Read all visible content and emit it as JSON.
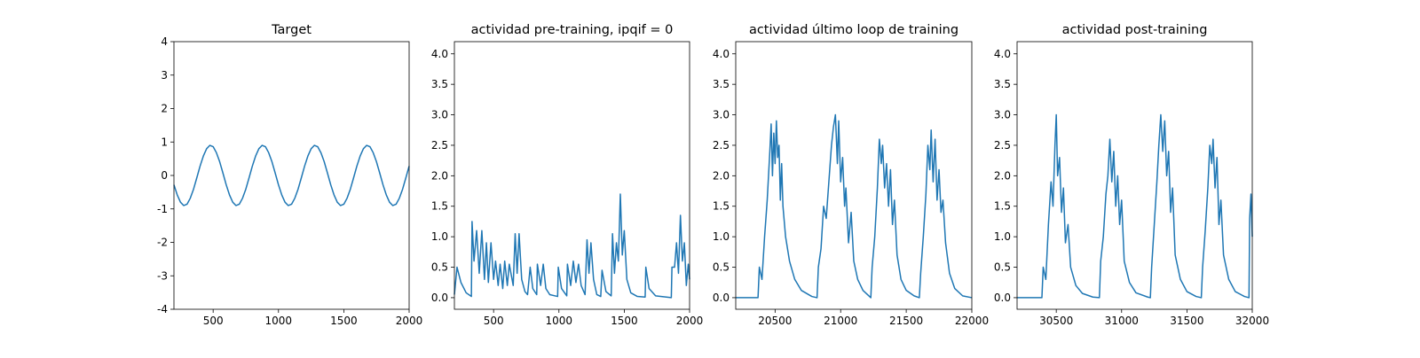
{
  "chart_data": [
    {
      "type": "line",
      "title": "Target",
      "color": "#1f77b4",
      "x": [
        200,
        225,
        250,
        275,
        300,
        325,
        350,
        375,
        400,
        425,
        450,
        475,
        500,
        525,
        550,
        575,
        600,
        625,
        650,
        675,
        700,
        725,
        750,
        775,
        800,
        825,
        850,
        875,
        900,
        925,
        950,
        975,
        1000,
        1025,
        1050,
        1075,
        1100,
        1125,
        1150,
        1175,
        1200,
        1225,
        1250,
        1275,
        1300,
        1325,
        1350,
        1375,
        1400,
        1425,
        1450,
        1475,
        1500,
        1525,
        1550,
        1575,
        1600,
        1625,
        1650,
        1675,
        1700,
        1725,
        1750,
        1775,
        1800,
        1825,
        1850,
        1875,
        1900,
        1925,
        1950,
        1975,
        2000
      ],
      "values": [
        -0.28,
        -0.58,
        -0.8,
        -0.9,
        -0.86,
        -0.68,
        -0.41,
        -0.07,
        0.28,
        0.58,
        0.8,
        0.9,
        0.86,
        0.68,
        0.41,
        0.07,
        -0.28,
        -0.58,
        -0.8,
        -0.9,
        -0.86,
        -0.68,
        -0.41,
        -0.07,
        0.28,
        0.58,
        0.8,
        0.9,
        0.86,
        0.68,
        0.41,
        0.07,
        -0.28,
        -0.58,
        -0.8,
        -0.9,
        -0.86,
        -0.68,
        -0.41,
        -0.07,
        0.28,
        0.58,
        0.8,
        0.9,
        0.86,
        0.68,
        0.41,
        0.07,
        -0.28,
        -0.58,
        -0.8,
        -0.9,
        -0.86,
        -0.68,
        -0.41,
        -0.07,
        0.28,
        0.58,
        0.8,
        0.9,
        0.86,
        0.68,
        0.41,
        0.07,
        -0.28,
        -0.58,
        -0.8,
        -0.9,
        -0.86,
        -0.68,
        -0.41,
        -0.07,
        0.28
      ],
      "xlim": [
        200,
        2000
      ],
      "ylim": [
        -4,
        4
      ],
      "xticks": [
        500,
        1000,
        1500,
        2000
      ],
      "yticks": [
        -4,
        -3,
        -2,
        -1,
        0,
        1,
        2,
        3,
        4
      ]
    },
    {
      "type": "line",
      "title": "actividad pre-training, ipqif = 0",
      "color": "#1f77b4",
      "x": [
        200,
        220,
        250,
        290,
        330,
        335,
        350,
        370,
        390,
        410,
        430,
        445,
        460,
        480,
        500,
        515,
        535,
        550,
        570,
        585,
        605,
        620,
        650,
        665,
        680,
        695,
        715,
        740,
        760,
        780,
        800,
        830,
        835,
        860,
        880,
        900,
        930,
        990,
        995,
        1020,
        1060,
        1065,
        1090,
        1110,
        1130,
        1150,
        1170,
        1200,
        1215,
        1230,
        1245,
        1265,
        1290,
        1320,
        1330,
        1360,
        1400,
        1410,
        1425,
        1440,
        1455,
        1470,
        1485,
        1500,
        1520,
        1550,
        1600,
        1660,
        1665,
        1690,
        1740,
        1860,
        1865,
        1885,
        1900,
        1915,
        1930,
        1945,
        1960,
        1975,
        1990,
        2000
      ],
      "values": [
        0.05,
        0.5,
        0.25,
        0.08,
        0.02,
        1.25,
        0.6,
        1.1,
        0.4,
        1.1,
        0.3,
        0.9,
        0.25,
        0.9,
        0.3,
        0.6,
        0.2,
        0.55,
        0.15,
        0.6,
        0.2,
        0.55,
        0.2,
        1.05,
        0.4,
        1.05,
        0.3,
        0.1,
        0.05,
        0.5,
        0.15,
        0.05,
        0.55,
        0.2,
        0.55,
        0.15,
        0.05,
        0.02,
        0.5,
        0.15,
        0.03,
        0.55,
        0.2,
        0.6,
        0.25,
        0.55,
        0.2,
        0.05,
        0.95,
        0.4,
        0.9,
        0.3,
        0.05,
        0.02,
        0.45,
        0.1,
        0.03,
        1.05,
        0.4,
        0.9,
        0.6,
        1.7,
        0.7,
        1.1,
        0.3,
        0.08,
        0.02,
        0.01,
        0.5,
        0.15,
        0.03,
        0.0,
        0.5,
        0.5,
        0.9,
        0.4,
        1.35,
        0.6,
        0.9,
        0.2,
        0.55,
        0.3
      ],
      "xlim": [
        200,
        2000
      ],
      "ylim": [
        -0.19,
        4.2
      ],
      "xticks": [
        500,
        1000,
        1500,
        2000
      ],
      "yticks": [
        {
          "value": 0,
          "label": "0.0"
        },
        0.5,
        {
          "value": 1,
          "label": "1.0"
        },
        1.5,
        {
          "value": 2,
          "label": "2.0"
        },
        2.5,
        {
          "value": 3,
          "label": "3.0"
        },
        3.5,
        {
          "value": 4,
          "label": "4.0"
        }
      ]
    },
    {
      "type": "line",
      "title": "actividad último loop de training",
      "color": "#1f77b4",
      "x": [
        20200,
        20370,
        20380,
        20400,
        20420,
        20440,
        20460,
        20470,
        20480,
        20490,
        20500,
        20510,
        20520,
        20530,
        20540,
        20550,
        20560,
        20580,
        20610,
        20650,
        20700,
        20780,
        20820,
        20830,
        20850,
        20870,
        20890,
        20910,
        20930,
        20945,
        20960,
        20975,
        20985,
        21000,
        21015,
        21030,
        21040,
        21060,
        21080,
        21100,
        21130,
        21170,
        21220,
        21230,
        21240,
        21260,
        21280,
        21295,
        21310,
        21320,
        21335,
        21350,
        21365,
        21380,
        21395,
        21410,
        21430,
        21460,
        21500,
        21560,
        21600,
        21610,
        21630,
        21650,
        21665,
        21680,
        21690,
        21705,
        21720,
        21735,
        21750,
        21765,
        21780,
        21800,
        21830,
        21870,
        21930,
        22000
      ],
      "values": [
        0,
        0,
        0.5,
        0.3,
        1.0,
        1.6,
        2.4,
        2.85,
        2.0,
        2.7,
        2.2,
        2.9,
        2.3,
        2.5,
        1.6,
        2.2,
        1.5,
        1.0,
        0.6,
        0.3,
        0.12,
        0.02,
        0,
        0.5,
        0.8,
        1.5,
        1.3,
        1.9,
        2.5,
        2.8,
        3.0,
        2.2,
        2.9,
        1.9,
        2.3,
        1.5,
        1.8,
        0.9,
        1.4,
        0.6,
        0.3,
        0.12,
        0.02,
        0,
        0.5,
        1.0,
        1.8,
        2.6,
        2.2,
        2.5,
        1.8,
        2.2,
        1.5,
        2.1,
        1.2,
        1.6,
        0.7,
        0.3,
        0.12,
        0.03,
        0,
        0.4,
        1.0,
        1.7,
        2.5,
        2.1,
        2.75,
        1.9,
        2.6,
        1.6,
        2.1,
        1.4,
        1.6,
        0.9,
        0.4,
        0.15,
        0.03,
        0
      ],
      "xlim": [
        20200,
        22000
      ],
      "ylim": [
        -0.19,
        4.2
      ],
      "xticks": [
        20500,
        21000,
        21500,
        22000
      ],
      "yticks": [
        {
          "value": 0,
          "label": "0.0"
        },
        0.5,
        {
          "value": 1,
          "label": "1.0"
        },
        1.5,
        {
          "value": 2,
          "label": "2.0"
        },
        2.5,
        {
          "value": 3,
          "label": "3.0"
        },
        3.5,
        {
          "value": 4,
          "label": "4.0"
        }
      ]
    },
    {
      "type": "line",
      "title": "actividad post-training",
      "color": "#1f77b4",
      "x": [
        30200,
        30390,
        30400,
        30420,
        30440,
        30460,
        30475,
        30490,
        30500,
        30510,
        30525,
        30540,
        30555,
        30570,
        30590,
        30610,
        30650,
        30700,
        30780,
        30830,
        30840,
        30860,
        30880,
        30895,
        30910,
        30925,
        30940,
        30955,
        30970,
        30985,
        31000,
        31020,
        31060,
        31110,
        31200,
        31220,
        31230,
        31250,
        31270,
        31285,
        31300,
        31315,
        31330,
        31345,
        31360,
        31375,
        31390,
        31410,
        31450,
        31500,
        31570,
        31610,
        31620,
        31640,
        31660,
        31675,
        31690,
        31700,
        31715,
        31730,
        31745,
        31760,
        31780,
        31820,
        31870,
        31940,
        31975,
        31980,
        31990,
        32000
      ],
      "values": [
        0,
        0,
        0.5,
        0.3,
        1.2,
        1.9,
        1.5,
        2.5,
        3.0,
        2.0,
        2.3,
        1.4,
        1.8,
        0.9,
        1.2,
        0.5,
        0.2,
        0.07,
        0.01,
        0,
        0.6,
        1.0,
        1.7,
        2.0,
        2.6,
        1.9,
        2.4,
        1.5,
        2.0,
        1.2,
        1.6,
        0.6,
        0.25,
        0.08,
        0.01,
        0,
        0.5,
        1.2,
        1.9,
        2.5,
        3.0,
        2.4,
        2.9,
        2.0,
        2.4,
        1.4,
        1.8,
        0.7,
        0.3,
        0.1,
        0.02,
        0,
        0.5,
        1.1,
        1.8,
        2.5,
        2.2,
        2.6,
        1.8,
        2.3,
        1.2,
        1.6,
        0.7,
        0.3,
        0.1,
        0.02,
        0,
        1.3,
        1.7,
        1.0
      ],
      "xlim": [
        30200,
        32000
      ],
      "ylim": [
        -0.19,
        4.2
      ],
      "xticks": [
        30500,
        31000,
        31500,
        32000
      ],
      "yticks": [
        {
          "value": 0,
          "label": "0.0"
        },
        0.5,
        {
          "value": 1,
          "label": "1.0"
        },
        1.5,
        {
          "value": 2,
          "label": "2.0"
        },
        2.5,
        {
          "value": 3,
          "label": "3.0"
        },
        3.5,
        {
          "value": 4,
          "label": "4.0"
        }
      ]
    }
  ]
}
